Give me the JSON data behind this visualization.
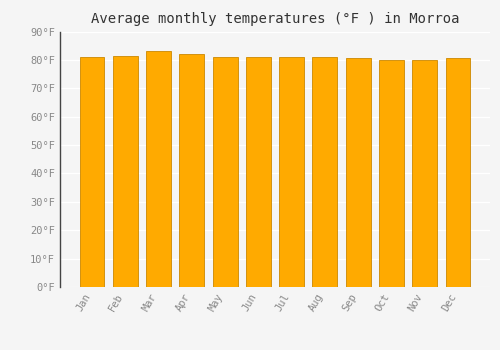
{
  "title": "Average monthly temperatures (°F ) in Morroa",
  "categories": [
    "Jan",
    "Feb",
    "Mar",
    "Apr",
    "May",
    "Jun",
    "Jul",
    "Aug",
    "Sep",
    "Oct",
    "Nov",
    "Dec"
  ],
  "values": [
    81,
    81.5,
    83,
    82,
    81,
    81,
    81,
    81,
    80.5,
    80,
    80,
    80.5
  ],
  "bar_color": "#FFAA00",
  "bar_edge_color": "#CC8800",
  "background_color": "#f5f5f5",
  "plot_bg_color": "#f5f5f5",
  "ylim": [
    0,
    90
  ],
  "yticks": [
    0,
    10,
    20,
    30,
    40,
    50,
    60,
    70,
    80,
    90
  ],
  "ytick_labels": [
    "0°F",
    "10°F",
    "20°F",
    "30°F",
    "40°F",
    "50°F",
    "60°F",
    "70°F",
    "80°F",
    "90°F"
  ],
  "title_fontsize": 10,
  "tick_fontsize": 7.5,
  "grid_color": "#ffffff",
  "tick_color": "#888888",
  "title_font": "monospace",
  "bar_width": 0.75,
  "spine_color": "#aaaaaa",
  "left_spine_color": "#444444"
}
